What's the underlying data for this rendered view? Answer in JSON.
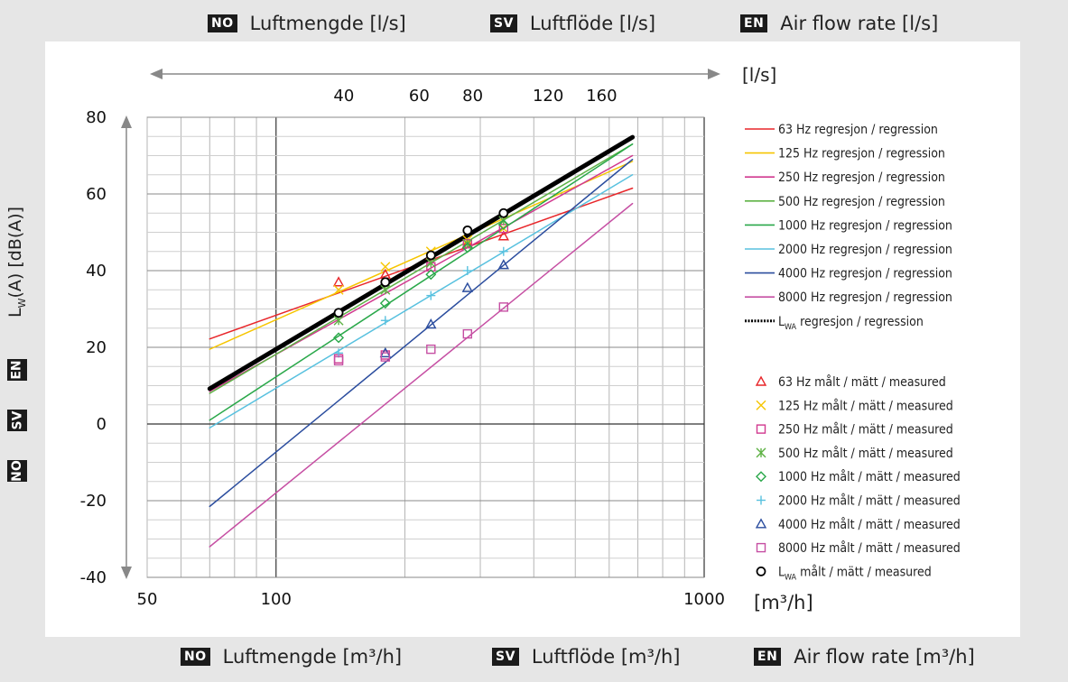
{
  "header": [
    {
      "badge": "NO",
      "text": "Luftmengde [l/s]"
    },
    {
      "badge": "SV",
      "text": "Luftflöde [l/s]"
    },
    {
      "badge": "EN",
      "text": "Air flow rate [l/s]"
    }
  ],
  "footer": [
    {
      "badge": "NO",
      "text": "Luftmengde [m³/h]"
    },
    {
      "badge": "SV",
      "text": "Luftflöde [m³/h]"
    },
    {
      "badge": "EN",
      "text": "Air flow rate [m³/h]"
    }
  ],
  "side_badges": [
    "EN",
    "SV",
    "NO"
  ],
  "chart_data": {
    "type": "scatter",
    "x_scale": "log",
    "xlim": [
      50,
      1000
    ],
    "ylim": [
      -40,
      80
    ],
    "x_ticks": [
      "50",
      "100",
      "1000"
    ],
    "x_unit": "[m³/h]",
    "top_ticks": [
      "40",
      "60",
      "80",
      "120",
      "160"
    ],
    "top_tick_values_ls": [
      40,
      60,
      80,
      120,
      160
    ],
    "top_unit": "[l/s]",
    "y_ticks": [
      "80",
      "60",
      "40",
      "20",
      "0",
      "-20",
      "-40"
    ],
    "y_tick_values": [
      80,
      60,
      40,
      20,
      0,
      -20,
      -40
    ],
    "ylabel_main": "L",
    "ylabel_sub": "W",
    "ylabel_rest": "(A) [dB(A)]",
    "grid": true,
    "legend_position": "right",
    "series": [
      {
        "name": "63 Hz",
        "color": "#e8262a",
        "marker": "triangle",
        "line": {
          "x": [
            70,
            680
          ],
          "y": [
            22.2,
            61.5
          ]
        },
        "points": {
          "x": [
            140,
            180,
            230,
            280,
            340
          ],
          "y": [
            37,
            39,
            44,
            47,
            49
          ]
        }
      },
      {
        "name": "125 Hz",
        "color": "#f6c500",
        "marker": "x",
        "line": {
          "x": [
            70,
            680
          ],
          "y": [
            19.5,
            68.5
          ]
        },
        "points": {
          "x": [
            140,
            180,
            230,
            280,
            340
          ],
          "y": [
            35,
            41,
            45,
            48,
            51
          ]
        }
      },
      {
        "name": "250 Hz",
        "color": "#d1398f",
        "marker": "square",
        "line": {
          "x": [
            70,
            680
          ],
          "y": [
            8.5,
            70
          ]
        },
        "points": {
          "x": [
            140,
            180,
            230,
            280,
            340
          ],
          "y": [
            17,
            18,
            41,
            47,
            51
          ]
        }
      },
      {
        "name": "500 Hz",
        "color": "#5eb245",
        "marker": "asterisk",
        "line": {
          "x": [
            70,
            680
          ],
          "y": [
            8,
            73
          ]
        },
        "points": {
          "x": [
            140,
            180,
            230,
            280,
            340
          ],
          "y": [
            27,
            35,
            42,
            47,
            53
          ]
        }
      },
      {
        "name": "1000 Hz",
        "color": "#2aa84a",
        "marker": "diamond",
        "line": {
          "x": [
            70,
            680
          ],
          "y": [
            1,
            73
          ]
        },
        "points": {
          "x": [
            140,
            180,
            230,
            280,
            340
          ],
          "y": [
            22.5,
            31.5,
            39,
            46,
            52
          ]
        }
      },
      {
        "name": "2000 Hz",
        "color": "#58c1df",
        "marker": "plus",
        "line": {
          "x": [
            70,
            680
          ],
          "y": [
            -1,
            65
          ]
        },
        "points": {
          "x": [
            140,
            180,
            230,
            280,
            340
          ],
          "y": [
            18.5,
            27,
            33.5,
            40,
            45
          ]
        }
      },
      {
        "name": "4000 Hz",
        "color": "#2b4d9e",
        "marker": "triangle",
        "line": {
          "x": [
            70,
            680
          ],
          "y": [
            -21.5,
            69
          ]
        },
        "points": {
          "x": [
            180,
            230,
            280,
            340
          ],
          "y": [
            18.5,
            26,
            35.5,
            41.5
          ]
        }
      },
      {
        "name": "8000 Hz",
        "color": "#c64fa3",
        "marker": "square",
        "line": {
          "x": [
            70,
            680
          ],
          "y": [
            -32,
            57.5
          ]
        },
        "points": {
          "x": [
            140,
            180,
            230,
            280,
            340
          ],
          "y": [
            16.5,
            17.5,
            19.5,
            23.5,
            30.5
          ]
        }
      },
      {
        "name": "LWA",
        "color": "#000000",
        "marker": "circle",
        "bold": true,
        "line": {
          "x": [
            70,
            680
          ],
          "y": [
            9.2,
            74.8
          ]
        },
        "points": {
          "x": [
            140,
            180,
            230,
            280,
            340
          ],
          "y": [
            29,
            37,
            44,
            50.5,
            55
          ]
        }
      }
    ],
    "legend_lines": [
      {
        "pre": "63 Hz regresjon / regression"
      },
      {
        "pre": "125 Hz regresjon / regression"
      },
      {
        "pre": "250 Hz regresjon / regression"
      },
      {
        "pre": "500 Hz regresjon / regression"
      },
      {
        "pre": "1000 Hz regresjon / regression"
      },
      {
        "pre": "2000 Hz regresjon / regression"
      },
      {
        "pre": "4000 Hz regresjon / regression"
      },
      {
        "pre": "8000 Hz regresjon / regression"
      },
      {
        "pre": "L",
        "sub": "WA",
        "post": " regresjon / regression"
      }
    ],
    "legend_markers": [
      {
        "pre": "63 Hz målt / mätt / measured"
      },
      {
        "pre": "125 Hz målt / mätt / measured"
      },
      {
        "pre": "250 Hz målt / mätt / measured"
      },
      {
        "pre": "500 Hz målt / mätt / measured"
      },
      {
        "pre": "1000 Hz målt / mätt / measured"
      },
      {
        "pre": "2000 Hz målt / mätt / measured"
      },
      {
        "pre": "4000 Hz målt / mätt / measured"
      },
      {
        "pre": "8000 Hz målt / mätt / measured"
      },
      {
        "pre": "L",
        "sub": "WA",
        "post": " målt / mätt / measured"
      }
    ]
  }
}
